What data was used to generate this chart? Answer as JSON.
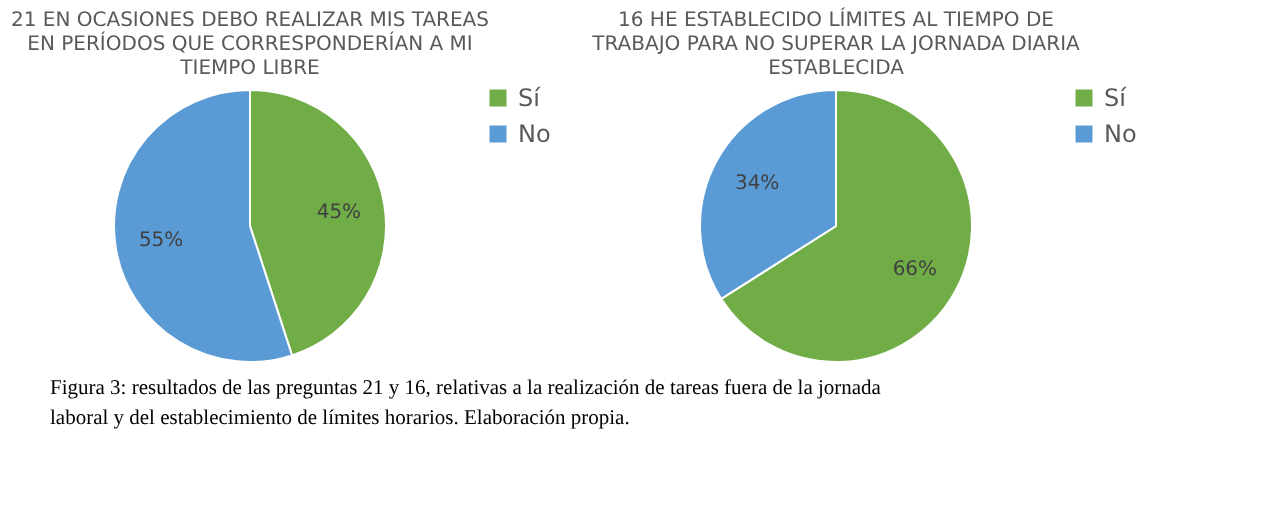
{
  "chart_data": [
    {
      "type": "pie",
      "title": "21 EN OCASIONES DEBO REALIZAR MIS TAREAS EN PERÍODOS QUE CORRESPONDERÍAN A MI TIEMPO LIBRE",
      "categories": [
        "Sí",
        "No"
      ],
      "values": [
        45,
        55
      ],
      "colors": [
        "#70ad47",
        "#5b9bd5"
      ],
      "value_labels": [
        "45%",
        "55%"
      ],
      "legend": "right",
      "annotations": [
        "Figura 3: resultados de las preguntas 21 y 16, relativas a la realización de tareas fuera de la jornada laboral y del establecimiento de límites horarios. Elaboración propia."
      ]
    },
    {
      "type": "pie",
      "title": "16 HE ESTABLECIDO LÍMITES AL TIEMPO DE TRABAJO PARA NO SUPERAR LA JORNADA DIARIA ESTABLECIDA",
      "categories": [
        "Sí",
        "No"
      ],
      "values": [
        66,
        34
      ],
      "colors": [
        "#70ad47",
        "#5b9bd5"
      ],
      "value_labels": [
        "66%",
        "34%"
      ],
      "legend": "right"
    }
  ]
}
